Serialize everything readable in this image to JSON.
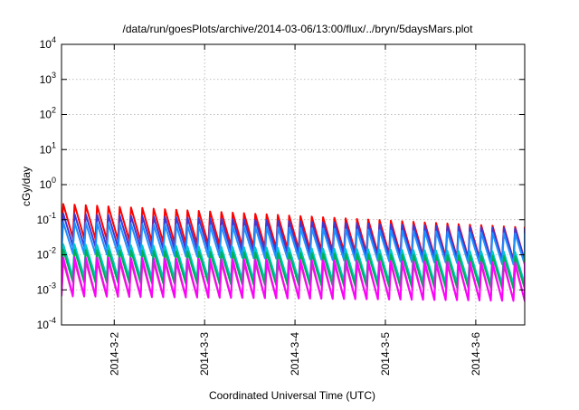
{
  "chart_data": {
    "type": "line",
    "title": "/data/run/goesPlots/archive/2014-03-06/13:00/flux/../bryn/5daysMars.plot",
    "xlabel": "Coordinated Universal Time (UTC)",
    "ylabel": "cGy/day",
    "y_scale": "log",
    "ylim": [
      0.0001,
      10000
    ],
    "y_ticks": [
      {
        "exp": "-4",
        "value": 0.0001
      },
      {
        "exp": "-3",
        "value": 0.001
      },
      {
        "exp": "-2",
        "value": 0.01
      },
      {
        "exp": "-1",
        "value": 0.1
      },
      {
        "exp": "0",
        "value": 1
      },
      {
        "exp": "1",
        "value": 10
      },
      {
        "exp": "2",
        "value": 100
      },
      {
        "exp": "3",
        "value": 1000
      },
      {
        "exp": "4",
        "value": 10000
      }
    ],
    "y_tick_base": "10",
    "xlim": [
      "2014-03-01T10:00",
      "2014-03-06T13:00"
    ],
    "x_ticks": [
      {
        "label": "2014-3-2",
        "date": "2014-03-02T00:00"
      },
      {
        "label": "2014-3-3",
        "date": "2014-03-03T00:00"
      },
      {
        "label": "2014-3-4",
        "date": "2014-03-04T00:00"
      },
      {
        "label": "2014-3-5",
        "date": "2014-03-05T00:00"
      },
      {
        "label": "2014-3-6",
        "date": "2014-03-06T00:00"
      }
    ],
    "grid": true,
    "legend": "none",
    "sawtooth_period_hours": 3,
    "series": [
      {
        "color": "#ff0000",
        "start_peak": 0.28,
        "end_peak": 0.06,
        "trough_ratio": 0.11
      },
      {
        "color": "#3a3ad8",
        "start_peak": 0.15,
        "end_peak": 0.055,
        "trough_ratio": 0.12
      },
      {
        "color": "#1e90ff",
        "start_peak": 0.085,
        "end_peak": 0.04,
        "trough_ratio": 0.13
      },
      {
        "color": "#00c8c8",
        "start_peak": 0.02,
        "end_peak": 0.012,
        "trough_ratio": 0.12
      },
      {
        "color": "#00b050",
        "start_peak": 0.014,
        "end_peak": 0.009,
        "trough_ratio": 0.12
      },
      {
        "color": "#c0508a",
        "start_peak": 0.0065,
        "end_peak": 0.005,
        "trough_ratio": 0.1
      },
      {
        "color": "#ff00ff",
        "start_peak": 0.0085,
        "end_peak": 0.006,
        "trough_ratio": 0.08
      }
    ]
  }
}
